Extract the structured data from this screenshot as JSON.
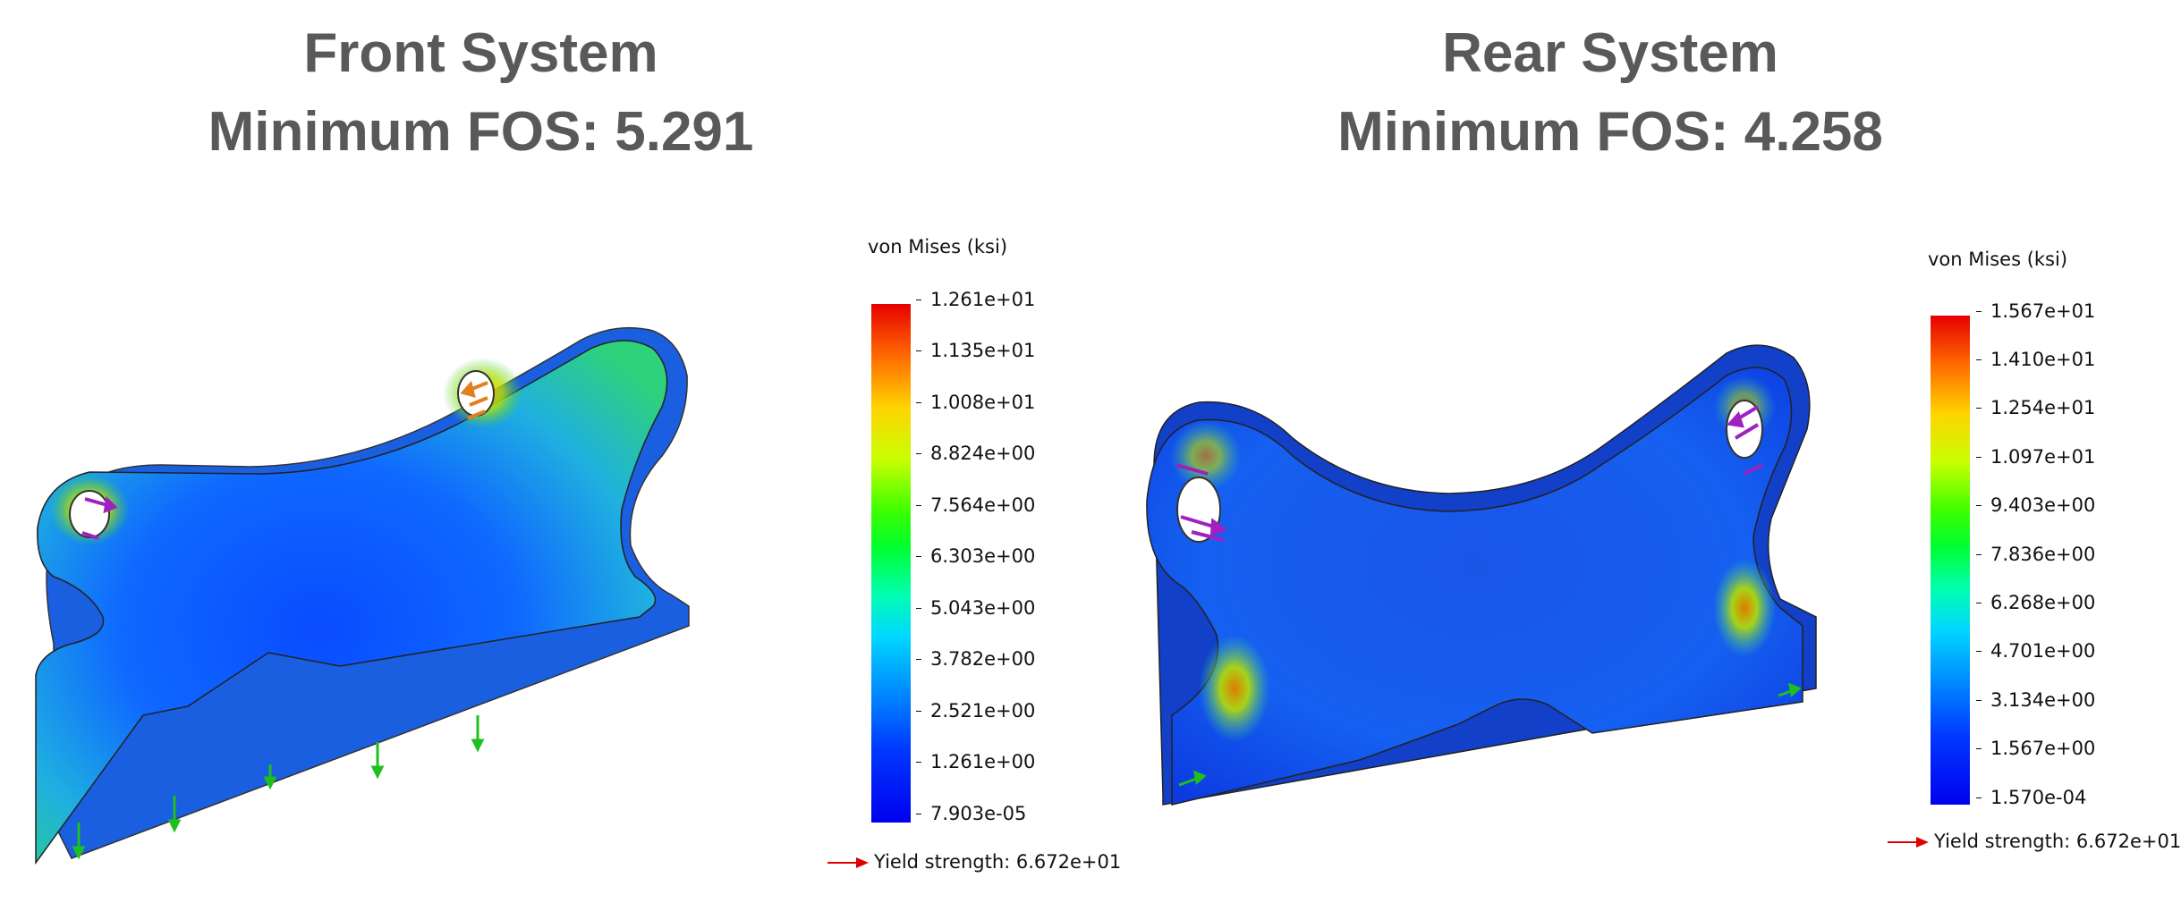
{
  "panels": {
    "front": {
      "title": "Front System",
      "subtitle": "Minimum FOS: 5.291",
      "legend": {
        "title": "von Mises (ksi)",
        "ticks": [
          "1.261e+01",
          "1.135e+01",
          "1.008e+01",
          "8.824e+00",
          "7.564e+00",
          "6.303e+00",
          "5.043e+00",
          "3.782e+00",
          "2.521e+00",
          "1.261e+00",
          "7.903e-05"
        ],
        "yield_label": "Yield strength: 6.672e+01"
      }
    },
    "rear": {
      "title": "Rear System",
      "subtitle": "Minimum FOS: 4.258",
      "legend": {
        "title": "von Mises (ksi)",
        "ticks": [
          "1.567e+01",
          "1.410e+01",
          "1.254e+01",
          "1.097e+01",
          "9.403e+00",
          "7.836e+00",
          "6.268e+00",
          "4.701e+00",
          "3.134e+00",
          "1.567e+00",
          "1.570e-04"
        ],
        "yield_label": "Yield strength: 6.672e+01"
      }
    }
  },
  "colors": {
    "heading_text": "#595959",
    "colormap_max": "#e60000",
    "colormap_min": "#0000ee",
    "yield_arrow": "#e00000",
    "fixture_arrows": "#1fbf1f",
    "load_arrows_front_left": "#a020c0",
    "load_arrows_front_right": "#e08020",
    "load_arrows_rear": "#a020c0"
  }
}
